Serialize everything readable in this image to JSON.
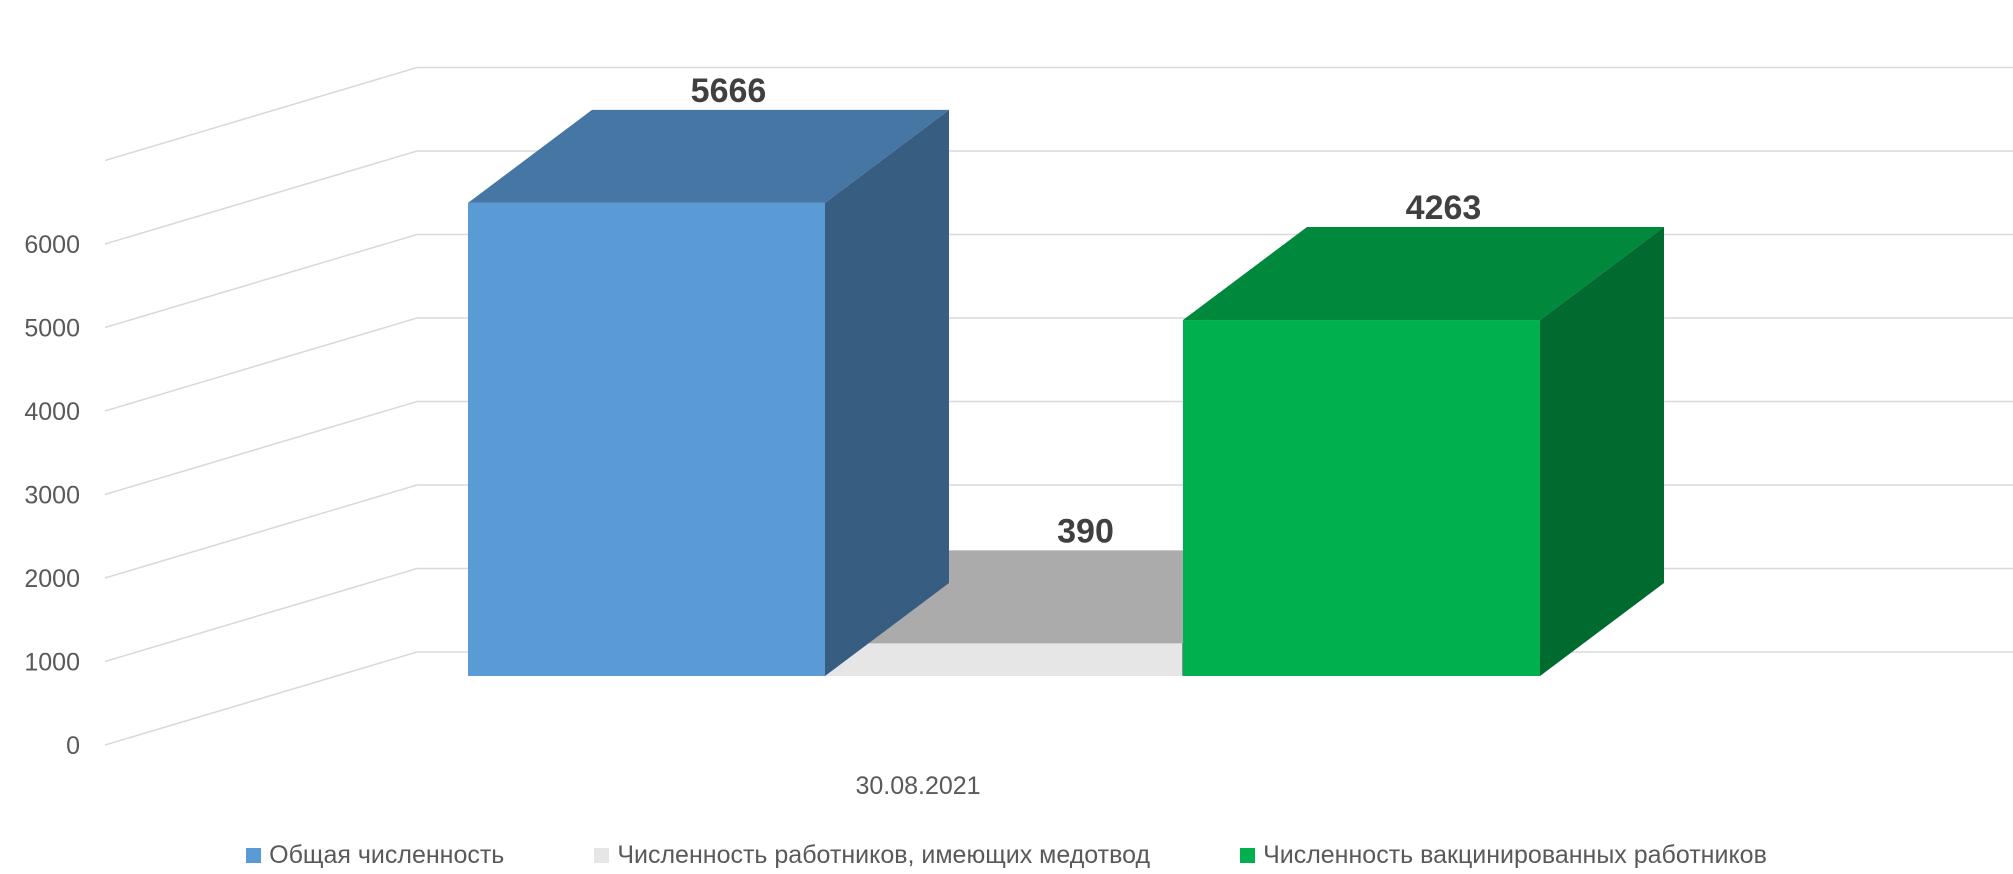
{
  "chart_data": {
    "type": "bar",
    "categories": [
      "30.08.2021"
    ],
    "series": [
      {
        "name": "Общая численность",
        "values": [
          5666
        ],
        "color": "#5b9bd5"
      },
      {
        "name": "Численность работников, имеющих медотвод",
        "values": [
          390
        ],
        "color": "#e7e6e6"
      },
      {
        "name": "Численность вакцинированных работников",
        "values": [
          4263
        ],
        "color": "#00b04f"
      }
    ],
    "y_ticks": [
      "0",
      "1000",
      "2000",
      "3000",
      "4000",
      "5000",
      "6000"
    ],
    "ylim": [
      0,
      6000
    ],
    "grid": true,
    "legend_position": "bottom",
    "three_d": true
  }
}
